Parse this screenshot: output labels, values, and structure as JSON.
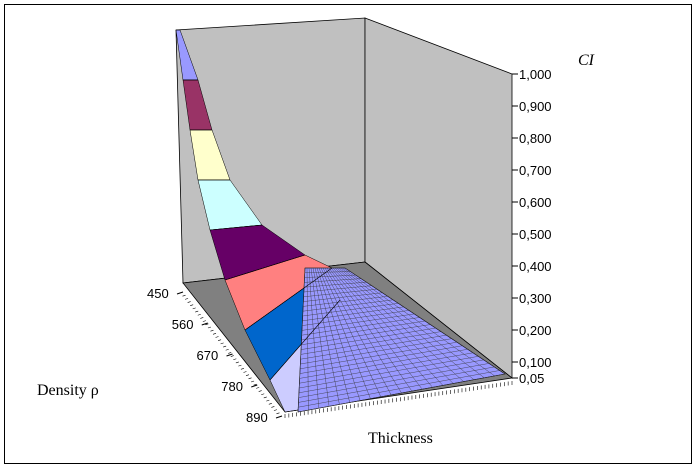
{
  "chart_data": {
    "type": "surface",
    "z_label": "CI",
    "x_label": "Density ρ",
    "y_label": "Thickness",
    "z_ticks": [
      "1,000",
      "0,900",
      "0,800",
      "0,700",
      "0,600",
      "0,500",
      "0,400",
      "0,300",
      "0,200",
      "0,100",
      "0,05"
    ],
    "z_values": [
      1.0,
      0.9,
      0.8,
      0.7,
      0.6,
      0.5,
      0.4,
      0.3,
      0.2,
      0.1,
      0.05
    ],
    "z_range": [
      0.05,
      1.0
    ],
    "density_ticks": [
      "450",
      "560",
      "670",
      "780",
      "890"
    ],
    "density_values": [
      450,
      560,
      670,
      780,
      890
    ],
    "color_bands": [
      "#9999ff",
      "#993366",
      "#ffffcc",
      "#ccffff",
      "#660066",
      "#ff8080",
      "#0066cc",
      "#ccccff",
      "#cc00cc"
    ],
    "wall_color": "#c0c0c0",
    "floor_color": "#808080"
  }
}
